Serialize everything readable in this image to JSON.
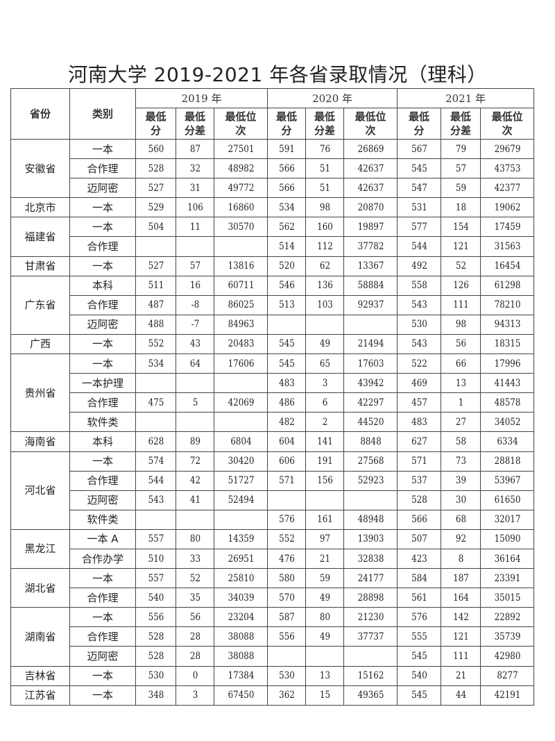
{
  "title": "河南大学 2019-2021 年各省录取情况（理科）",
  "headers": {
    "province": "省份",
    "category": "类别",
    "years": [
      "2019 年",
      "2020 年",
      "2021 年"
    ],
    "sub": [
      "最低\n分",
      "最低\n分差",
      "最低位\n次"
    ]
  },
  "groups": [
    {
      "province": "安徽省",
      "rows": [
        [
          "一本",
          "560",
          "87",
          "27501",
          "591",
          "76",
          "26869",
          "567",
          "79",
          "29679"
        ],
        [
          "合作理",
          "528",
          "32",
          "48982",
          "566",
          "51",
          "42637",
          "545",
          "57",
          "43753"
        ],
        [
          "迈阿密",
          "527",
          "31",
          "49772",
          "566",
          "51",
          "42637",
          "547",
          "59",
          "42377"
        ]
      ]
    },
    {
      "province": "北京市",
      "rows": [
        [
          "一本",
          "529",
          "106",
          "16860",
          "534",
          "98",
          "20870",
          "531",
          "18",
          "19062"
        ]
      ]
    },
    {
      "province": "福建省",
      "rows": [
        [
          "一本",
          "504",
          "11",
          "30570",
          "562",
          "160",
          "19897",
          "577",
          "154",
          "17459"
        ],
        [
          "合作理",
          "",
          "",
          "",
          "514",
          "112",
          "37782",
          "544",
          "121",
          "31563"
        ]
      ]
    },
    {
      "province": "甘肃省",
      "rows": [
        [
          "一本",
          "527",
          "57",
          "13816",
          "520",
          "62",
          "13367",
          "492",
          "52",
          "16454"
        ]
      ]
    },
    {
      "province": "广东省",
      "rows": [
        [
          "本科",
          "511",
          "16",
          "60711",
          "546",
          "136",
          "58884",
          "558",
          "126",
          "61298"
        ],
        [
          "合作理",
          "487",
          "-8",
          "86025",
          "513",
          "103",
          "92937",
          "543",
          "111",
          "78210"
        ],
        [
          "迈阿密",
          "488",
          "-7",
          "84963",
          "",
          "",
          "",
          "530",
          "98",
          "94313"
        ]
      ]
    },
    {
      "province": "广西",
      "rows": [
        [
          "一本",
          "552",
          "43",
          "20483",
          "545",
          "49",
          "21494",
          "543",
          "56",
          "18315"
        ]
      ]
    },
    {
      "province": "贵州省",
      "rows": [
        [
          "一本",
          "534",
          "64",
          "17606",
          "545",
          "65",
          "17603",
          "522",
          "66",
          "17996"
        ],
        [
          "一本护理",
          "",
          "",
          "",
          "483",
          "3",
          "43942",
          "469",
          "13",
          "41443"
        ],
        [
          "合作理",
          "475",
          "5",
          "42069",
          "486",
          "6",
          "42297",
          "457",
          "1",
          "48578"
        ],
        [
          "软件类",
          "",
          "",
          "",
          "482",
          "2",
          "44520",
          "483",
          "27",
          "34052"
        ]
      ]
    },
    {
      "province": "海南省",
      "rows": [
        [
          "本科",
          "628",
          "89",
          "6804",
          "604",
          "141",
          "8848",
          "627",
          "58",
          "6334"
        ]
      ]
    },
    {
      "province": "河北省",
      "rows": [
        [
          "一本",
          "574",
          "72",
          "30420",
          "606",
          "191",
          "27568",
          "571",
          "73",
          "28818"
        ],
        [
          "合作理",
          "544",
          "42",
          "51727",
          "571",
          "156",
          "52923",
          "537",
          "39",
          "53967"
        ],
        [
          "迈阿密",
          "543",
          "41",
          "52494",
          "",
          "",
          "",
          "528",
          "30",
          "61650"
        ],
        [
          "软件类",
          "",
          "",
          "",
          "576",
          "161",
          "48948",
          "566",
          "68",
          "32017"
        ]
      ]
    },
    {
      "province": "黑龙江",
      "rows": [
        [
          "一本 A",
          "557",
          "80",
          "14359",
          "552",
          "97",
          "13903",
          "507",
          "92",
          "15090"
        ],
        [
          "合作办学",
          "510",
          "33",
          "26951",
          "476",
          "21",
          "32838",
          "423",
          "8",
          "36164"
        ]
      ]
    },
    {
      "province": "湖北省",
      "rows": [
        [
          "一本",
          "557",
          "52",
          "25810",
          "580",
          "59",
          "24177",
          "584",
          "187",
          "23391"
        ],
        [
          "合作理",
          "540",
          "35",
          "34039",
          "570",
          "49",
          "28898",
          "561",
          "164",
          "35015"
        ]
      ]
    },
    {
      "province": "湖南省",
      "rows": [
        [
          "一本",
          "556",
          "56",
          "23204",
          "587",
          "80",
          "21230",
          "576",
          "142",
          "22892"
        ],
        [
          "合作理",
          "528",
          "28",
          "38088",
          "556",
          "49",
          "37737",
          "555",
          "121",
          "35739"
        ],
        [
          "迈阿密",
          "528",
          "28",
          "38088",
          "",
          "",
          "",
          "545",
          "111",
          "42980"
        ]
      ]
    },
    {
      "province": "吉林省",
      "rows": [
        [
          "一本",
          "530",
          "0",
          "17384",
          "530",
          "13",
          "15162",
          "540",
          "21",
          "8277"
        ]
      ]
    },
    {
      "province": "江苏省",
      "rows": [
        [
          "一本",
          "348",
          "3",
          "67450",
          "362",
          "15",
          "49365",
          "545",
          "44",
          "42191"
        ]
      ]
    }
  ]
}
